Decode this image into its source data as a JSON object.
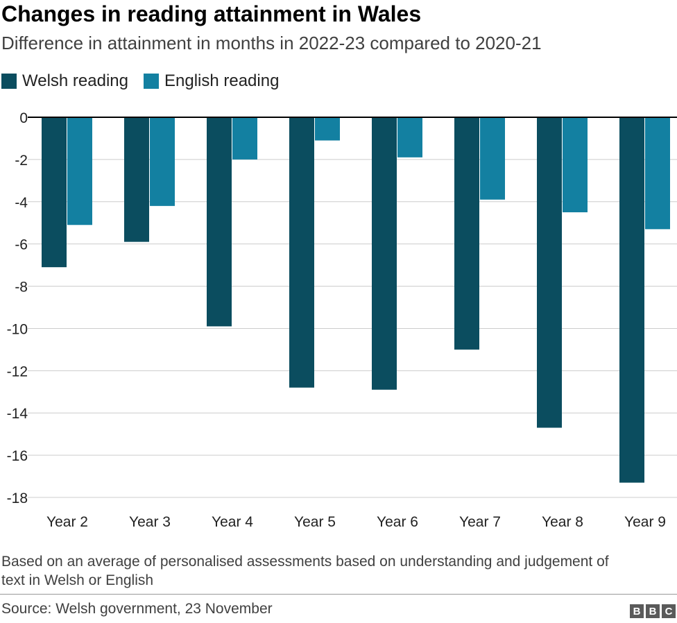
{
  "chart_data": {
    "type": "bar",
    "title": "Changes in reading attainment in Wales",
    "subtitle": "Difference in attainment in months in 2022-23 compared to 2020-21",
    "categories": [
      "Year 2",
      "Year 3",
      "Year 4",
      "Year 5",
      "Year 6",
      "Year 7",
      "Year 8",
      "Year 9"
    ],
    "series": [
      {
        "name": "Welsh reading",
        "color": "#0b4d5f",
        "values": [
          -7.1,
          -5.9,
          -9.9,
          -12.8,
          -12.9,
          -11.0,
          -14.7,
          -17.3
        ]
      },
      {
        "name": "English reading",
        "color": "#1380a1",
        "values": [
          -5.1,
          -4.2,
          -2.0,
          -1.1,
          -1.9,
          -3.9,
          -4.5,
          -5.3
        ]
      }
    ],
    "ylim": [
      -18,
      0
    ],
    "yticks": [
      0,
      -2,
      -4,
      -6,
      -8,
      -10,
      -12,
      -14,
      -16,
      -18
    ],
    "ytick_labels": [
      "0",
      "-2",
      "-4",
      "-6",
      "-8",
      "-10",
      "-12",
      "-14",
      "-16",
      "-18"
    ],
    "grid": true,
    "legend": "top-left",
    "xlabel": "",
    "ylabel": ""
  },
  "note": "Based on an average of personalised assessments based on understanding and judgement of text in Welsh or English",
  "source": "Source: Welsh government, 23 November",
  "logo": [
    "B",
    "B",
    "C"
  ]
}
